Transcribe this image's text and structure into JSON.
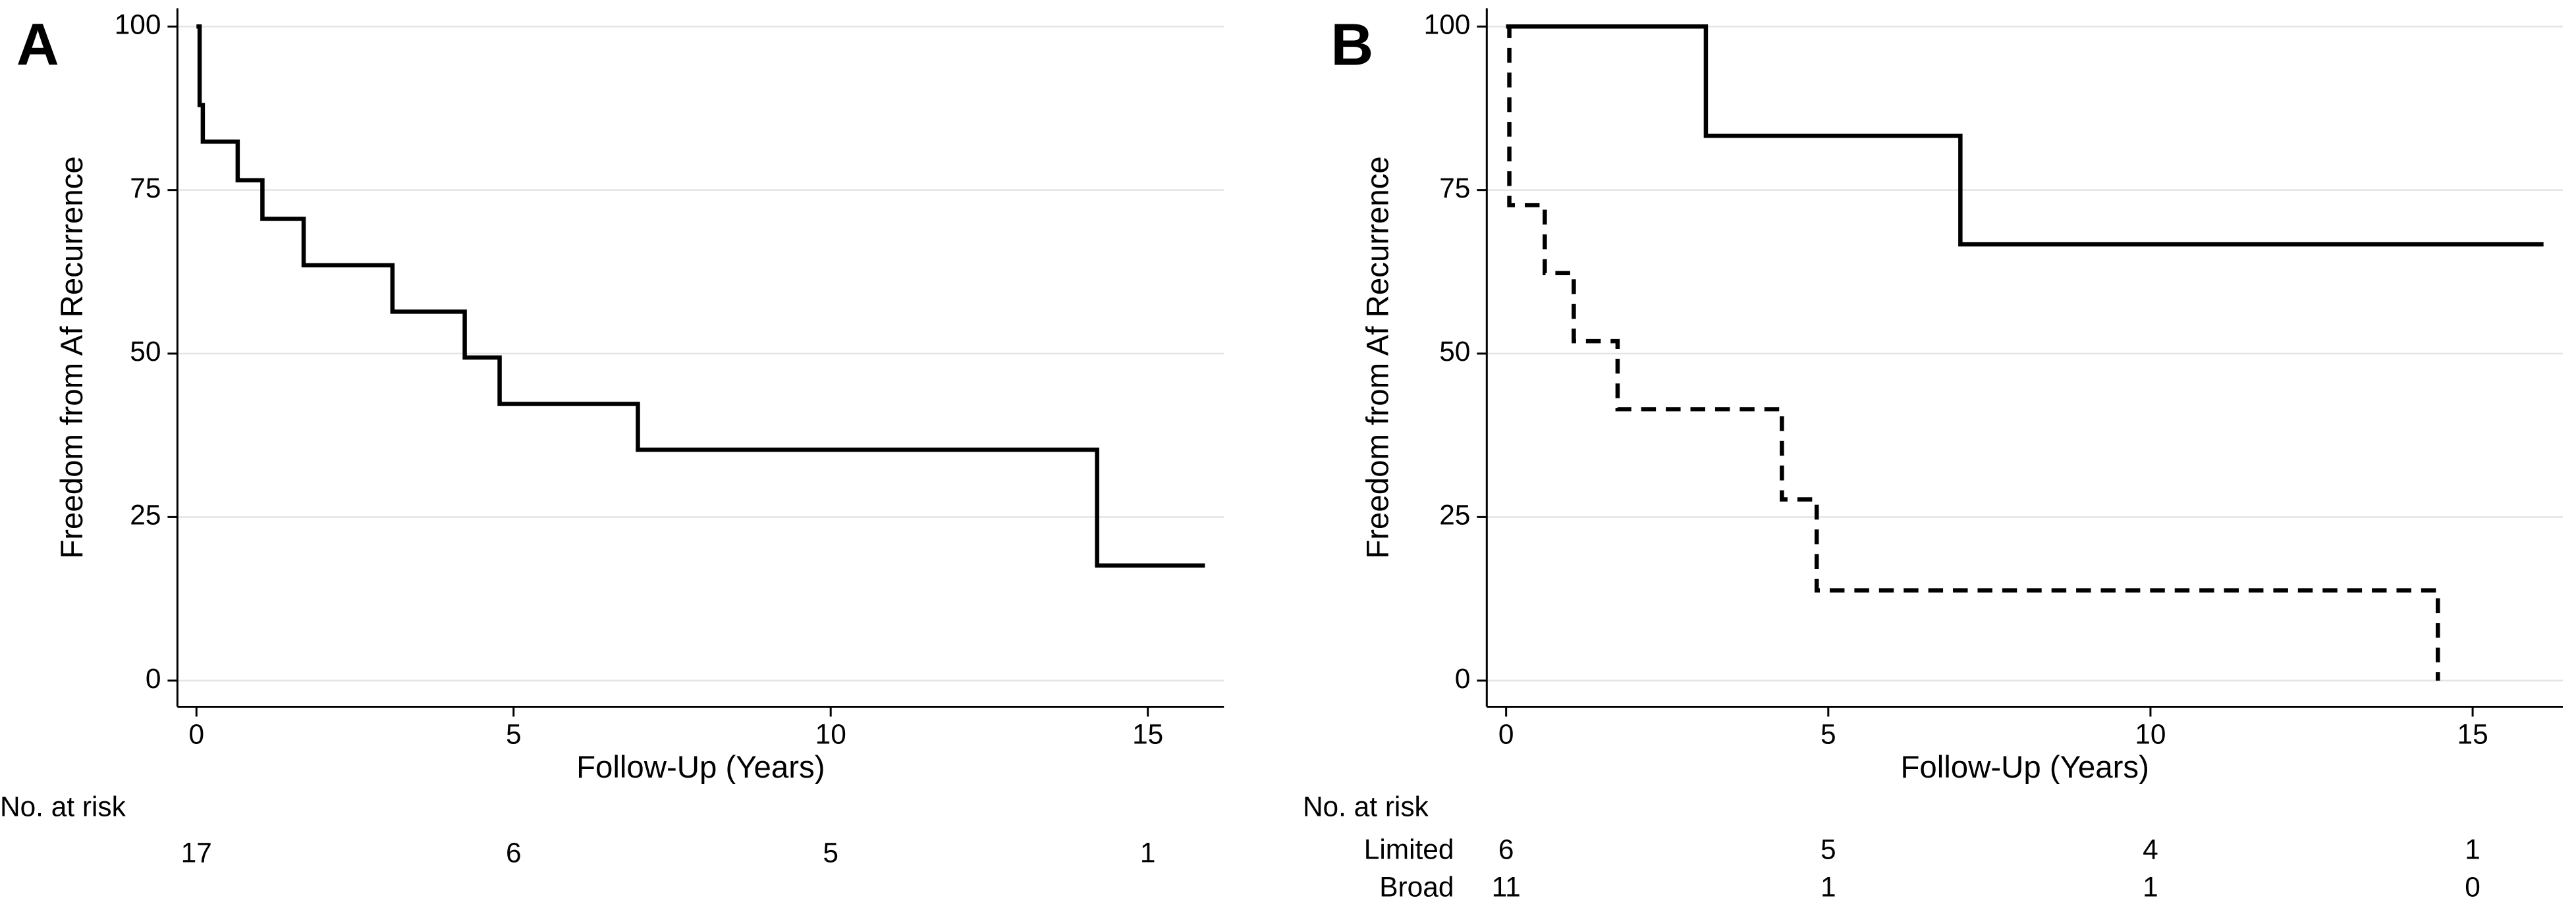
{
  "chart_data": [
    {
      "type": "step",
      "panel_label": "A",
      "y_label": "Freedom from Af Recurrence",
      "x_label": "Follow-Up (Years)",
      "xlim": [
        -0.3,
        16.2
      ],
      "xticks": [
        0,
        5,
        10,
        15
      ],
      "ylim": [
        -4,
        102.8
      ],
      "yticks": [
        0,
        25,
        50,
        75,
        100
      ],
      "grid": true,
      "series": [
        {
          "color": "#000000",
          "dashed": false,
          "x": [
            0,
            0.05,
            0.1,
            0.65,
            1.04,
            1.69,
            3.09,
            4.23,
            4.78,
            6.96,
            14.2,
            15.9
          ],
          "values": [
            100,
            88,
            82.4,
            76.5,
            70.6,
            63.5,
            56.4,
            49.4,
            42.3,
            35.3,
            17.6,
            17.6
          ]
        }
      ],
      "risk_table": {
        "title": "No. at risk",
        "rows": [
          {
            "values": [
              17,
              6,
              5,
              1
            ]
          }
        ]
      }
    },
    {
      "type": "step",
      "panel_label": "B",
      "y_label": "Freedom from Af Recurrence",
      "x_label": "Follow-Up (Years)",
      "xlim": [
        -0.3,
        16.4
      ],
      "xticks": [
        0,
        5,
        10,
        15
      ],
      "ylim": [
        -4,
        102.8
      ],
      "yticks": [
        0,
        25,
        50,
        75,
        100
      ],
      "grid": true,
      "series": [
        {
          "color": "#000000",
          "dashed": false,
          "x": [
            0,
            3.1,
            7.05,
            16.1
          ],
          "values": [
            100,
            83.3,
            66.7,
            66.7
          ]
        },
        {
          "color": "#000000",
          "dashed": true,
          "x": [
            0,
            0.05,
            0.6,
            1.05,
            1.73,
            4.28,
            4.82,
            14.46
          ],
          "values": [
            100,
            72.7,
            62.3,
            51.9,
            41.5,
            27.7,
            13.8,
            0
          ]
        }
      ],
      "risk_table": {
        "title": "No. at risk",
        "rows": [
          {
            "name": "Limited",
            "values": [
              6,
              5,
              4,
              1
            ]
          },
          {
            "name": "Broad",
            "values": [
              11,
              1,
              1,
              0
            ]
          }
        ]
      }
    }
  ]
}
